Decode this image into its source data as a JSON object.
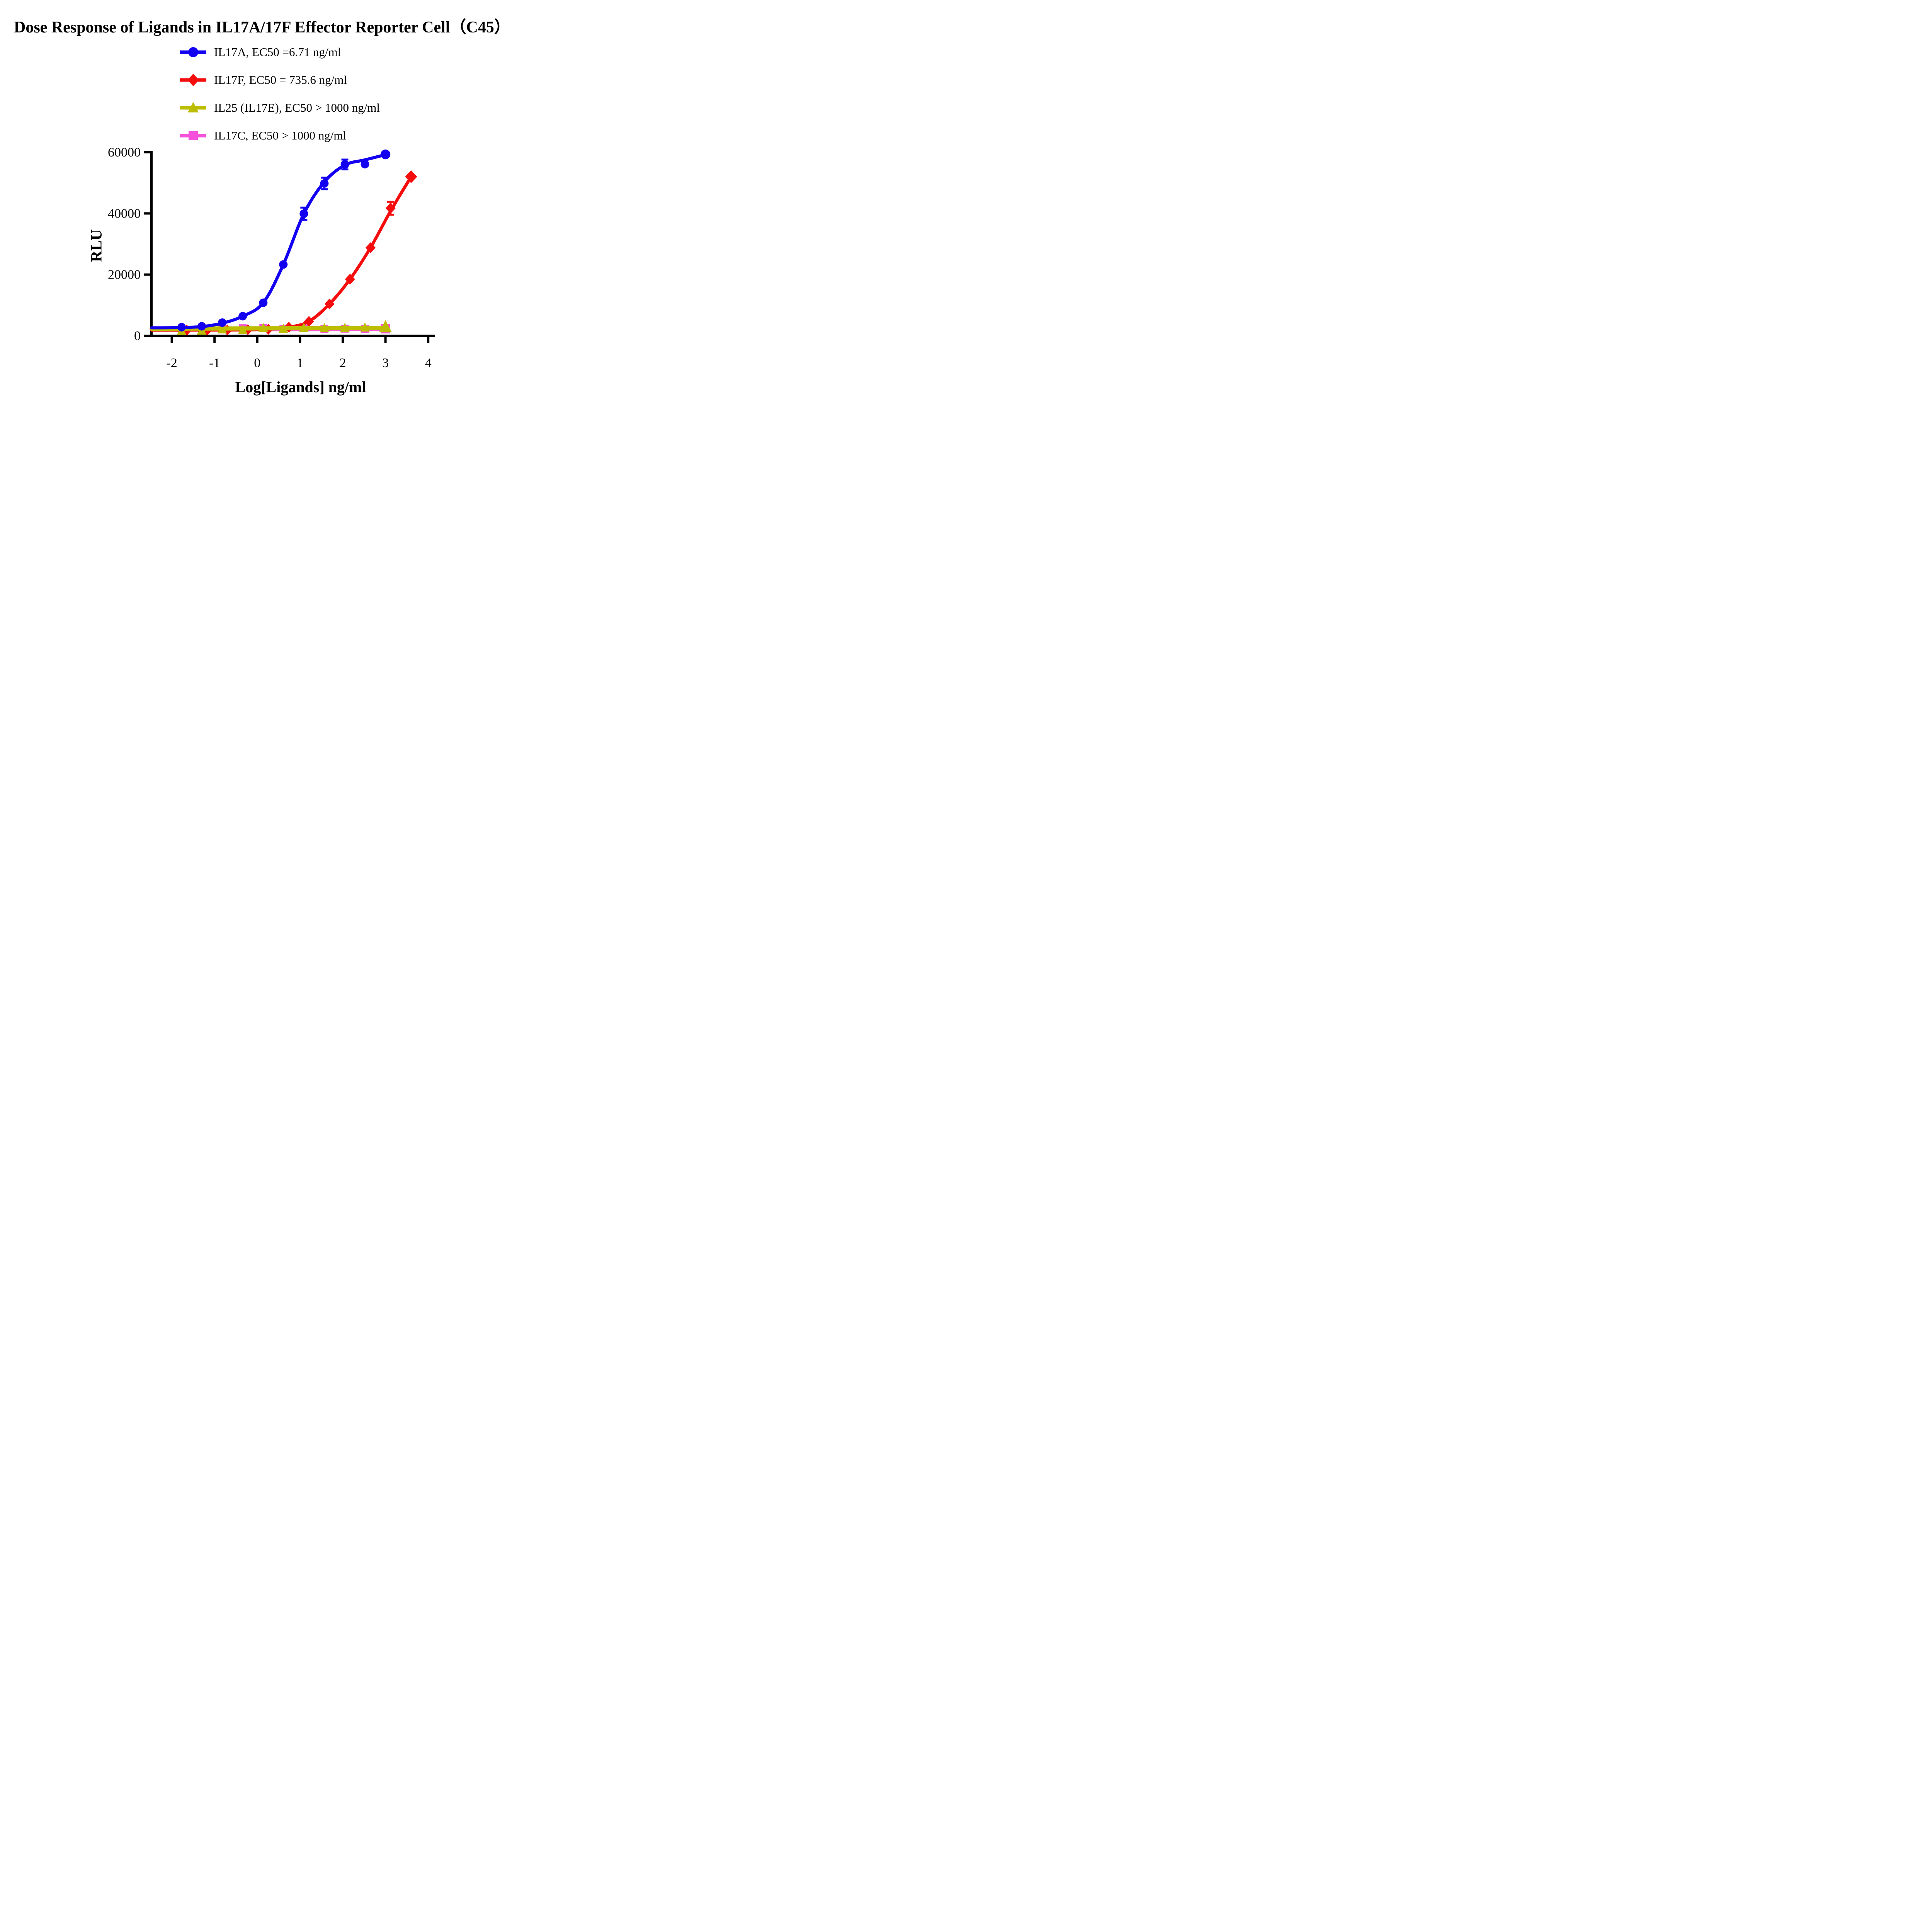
{
  "title": "Dose Response of Ligands in IL17A/17F Effector Reporter Cell（C45）",
  "legend": {
    "position": "top-center",
    "items": [
      {
        "label": "IL17A, EC50 =6.71 ng/ml"
      },
      {
        "label": "IL17F, EC50 = 735.6 ng/ml"
      },
      {
        "label": "IL25 (IL17E), EC50 > 1000 ng/ml"
      },
      {
        "label": "IL17C, EC50 > 1000 ng/ml"
      }
    ]
  },
  "chart_data": {
    "type": "scatter",
    "subtype": "dose-response-curves",
    "title": "Dose Response of Ligands in IL17A/17F Effector Reporter Cell（C45）",
    "xlabel": "Log[Ligands] ng/ml",
    "ylabel": "RLU",
    "xlim": [
      -2.47,
      4
    ],
    "ylim": [
      0,
      60000
    ],
    "grid": false,
    "axis_color": "#000000",
    "x_ticks": [
      {
        "v": -2,
        "label": "-2"
      },
      {
        "v": -1,
        "label": "-1"
      },
      {
        "v": 0,
        "label": "0"
      },
      {
        "v": 1,
        "label": "1"
      },
      {
        "v": 2,
        "label": "2"
      },
      {
        "v": 3,
        "label": "3"
      },
      {
        "v": 4,
        "label": "4"
      }
    ],
    "y_ticks": [
      {
        "v": 0,
        "label": "0"
      },
      {
        "v": 20000,
        "label": "20000"
      },
      {
        "v": 40000,
        "label": "40000"
      },
      {
        "v": 60000,
        "label": "60000"
      }
    ],
    "draw_order": [
      3,
      1,
      2,
      0
    ],
    "series": [
      {
        "name": "IL17A",
        "ec50": "6.71 ng/ml",
        "color": "#1400F0",
        "marker": "circle",
        "marker_size": 11,
        "last_marker_scale": 1.15,
        "x": [
          -1.77,
          -1.3,
          -0.82,
          -0.34,
          0.14,
          0.61,
          1.09,
          1.57,
          2.05,
          2.52,
          3.0
        ],
        "y": [
          2800,
          3100,
          4300,
          6400,
          10800,
          23300,
          39900,
          49800,
          56000,
          56100,
          59300
        ],
        "err": [
          0,
          0,
          0,
          0,
          0,
          0,
          2000,
          1900,
          1600,
          0,
          0
        ],
        "curve": [
          [
            -2.47,
            2600
          ],
          [
            -2.1,
            2620
          ],
          [
            -1.77,
            2700
          ],
          [
            -1.3,
            3000
          ],
          [
            -0.82,
            4100
          ],
          [
            -0.34,
            6400
          ],
          [
            0.14,
            10800
          ],
          [
            0.61,
            23300
          ],
          [
            1.09,
            39900
          ],
          [
            1.57,
            50300
          ],
          [
            2.05,
            55800
          ],
          [
            2.52,
            57500
          ],
          [
            3.0,
            59200
          ]
        ]
      },
      {
        "name": "IL17F",
        "ec50": "735.6 ng/ml",
        "color": "#F50D0D",
        "marker": "diamond",
        "marker_size": 13,
        "last_marker_scale": 1.2,
        "x": [
          -1.65,
          -1.17,
          -0.7,
          -0.22,
          0.26,
          0.74,
          1.21,
          1.69,
          2.17,
          2.65,
          3.12,
          3.6
        ],
        "y": [
          1850,
          1900,
          1900,
          2000,
          2150,
          2800,
          4700,
          10400,
          18500,
          28800,
          41700,
          52000
        ],
        "err": [
          0,
          0,
          0,
          0,
          0,
          0,
          0,
          0,
          0,
          0,
          2100,
          0
        ],
        "curve": [
          [
            -2.47,
            1850
          ],
          [
            -2.0,
            1850
          ],
          [
            -1.65,
            1860
          ],
          [
            -1.17,
            1880
          ],
          [
            -0.7,
            1900
          ],
          [
            -0.22,
            1950
          ],
          [
            0.26,
            2150
          ],
          [
            0.74,
            2800
          ],
          [
            1.21,
            4700
          ],
          [
            1.69,
            10400
          ],
          [
            2.17,
            18500
          ],
          [
            2.65,
            28800
          ],
          [
            3.12,
            40800
          ],
          [
            3.6,
            52000
          ]
        ]
      },
      {
        "name": "IL25 (IL17E)",
        "ec50": "> 1000 ng/ml",
        "color": "#BDBD00",
        "marker": "triangle",
        "marker_size": 13,
        "last_marker_scale": 1.35,
        "x": [
          -1.77,
          -1.3,
          -0.82,
          -0.34,
          0.14,
          0.61,
          1.09,
          1.57,
          2.05,
          2.52,
          3.0
        ],
        "y": [
          1600,
          1700,
          2100,
          1900,
          2600,
          2300,
          2600,
          2500,
          2600,
          2700,
          2900
        ],
        "err": [
          0,
          0,
          0,
          0,
          0,
          0,
          0,
          0,
          0,
          0,
          0
        ],
        "curve": [
          [
            -2.47,
            2320
          ],
          [
            0.2,
            2430
          ],
          [
            3.0,
            2560
          ]
        ]
      },
      {
        "name": "IL17C",
        "ec50": "> 1000 ng/ml",
        "color": "#F551DB",
        "marker": "square",
        "marker_size": 10,
        "last_marker_scale": 1.2,
        "x": [
          -1.77,
          -1.3,
          -0.82,
          -0.34,
          0.14,
          0.61,
          1.09,
          1.57,
          2.05,
          2.52,
          3.0
        ],
        "y": [
          2300,
          2250,
          2200,
          2500,
          2600,
          2300,
          2400,
          2250,
          2300,
          2150,
          2300
        ],
        "err": [
          0,
          0,
          0,
          0,
          0,
          0,
          0,
          0,
          0,
          0,
          0
        ],
        "curve": [
          [
            -2.47,
            2140
          ],
          [
            0.2,
            2170
          ],
          [
            3.0,
            2200
          ]
        ]
      }
    ]
  }
}
